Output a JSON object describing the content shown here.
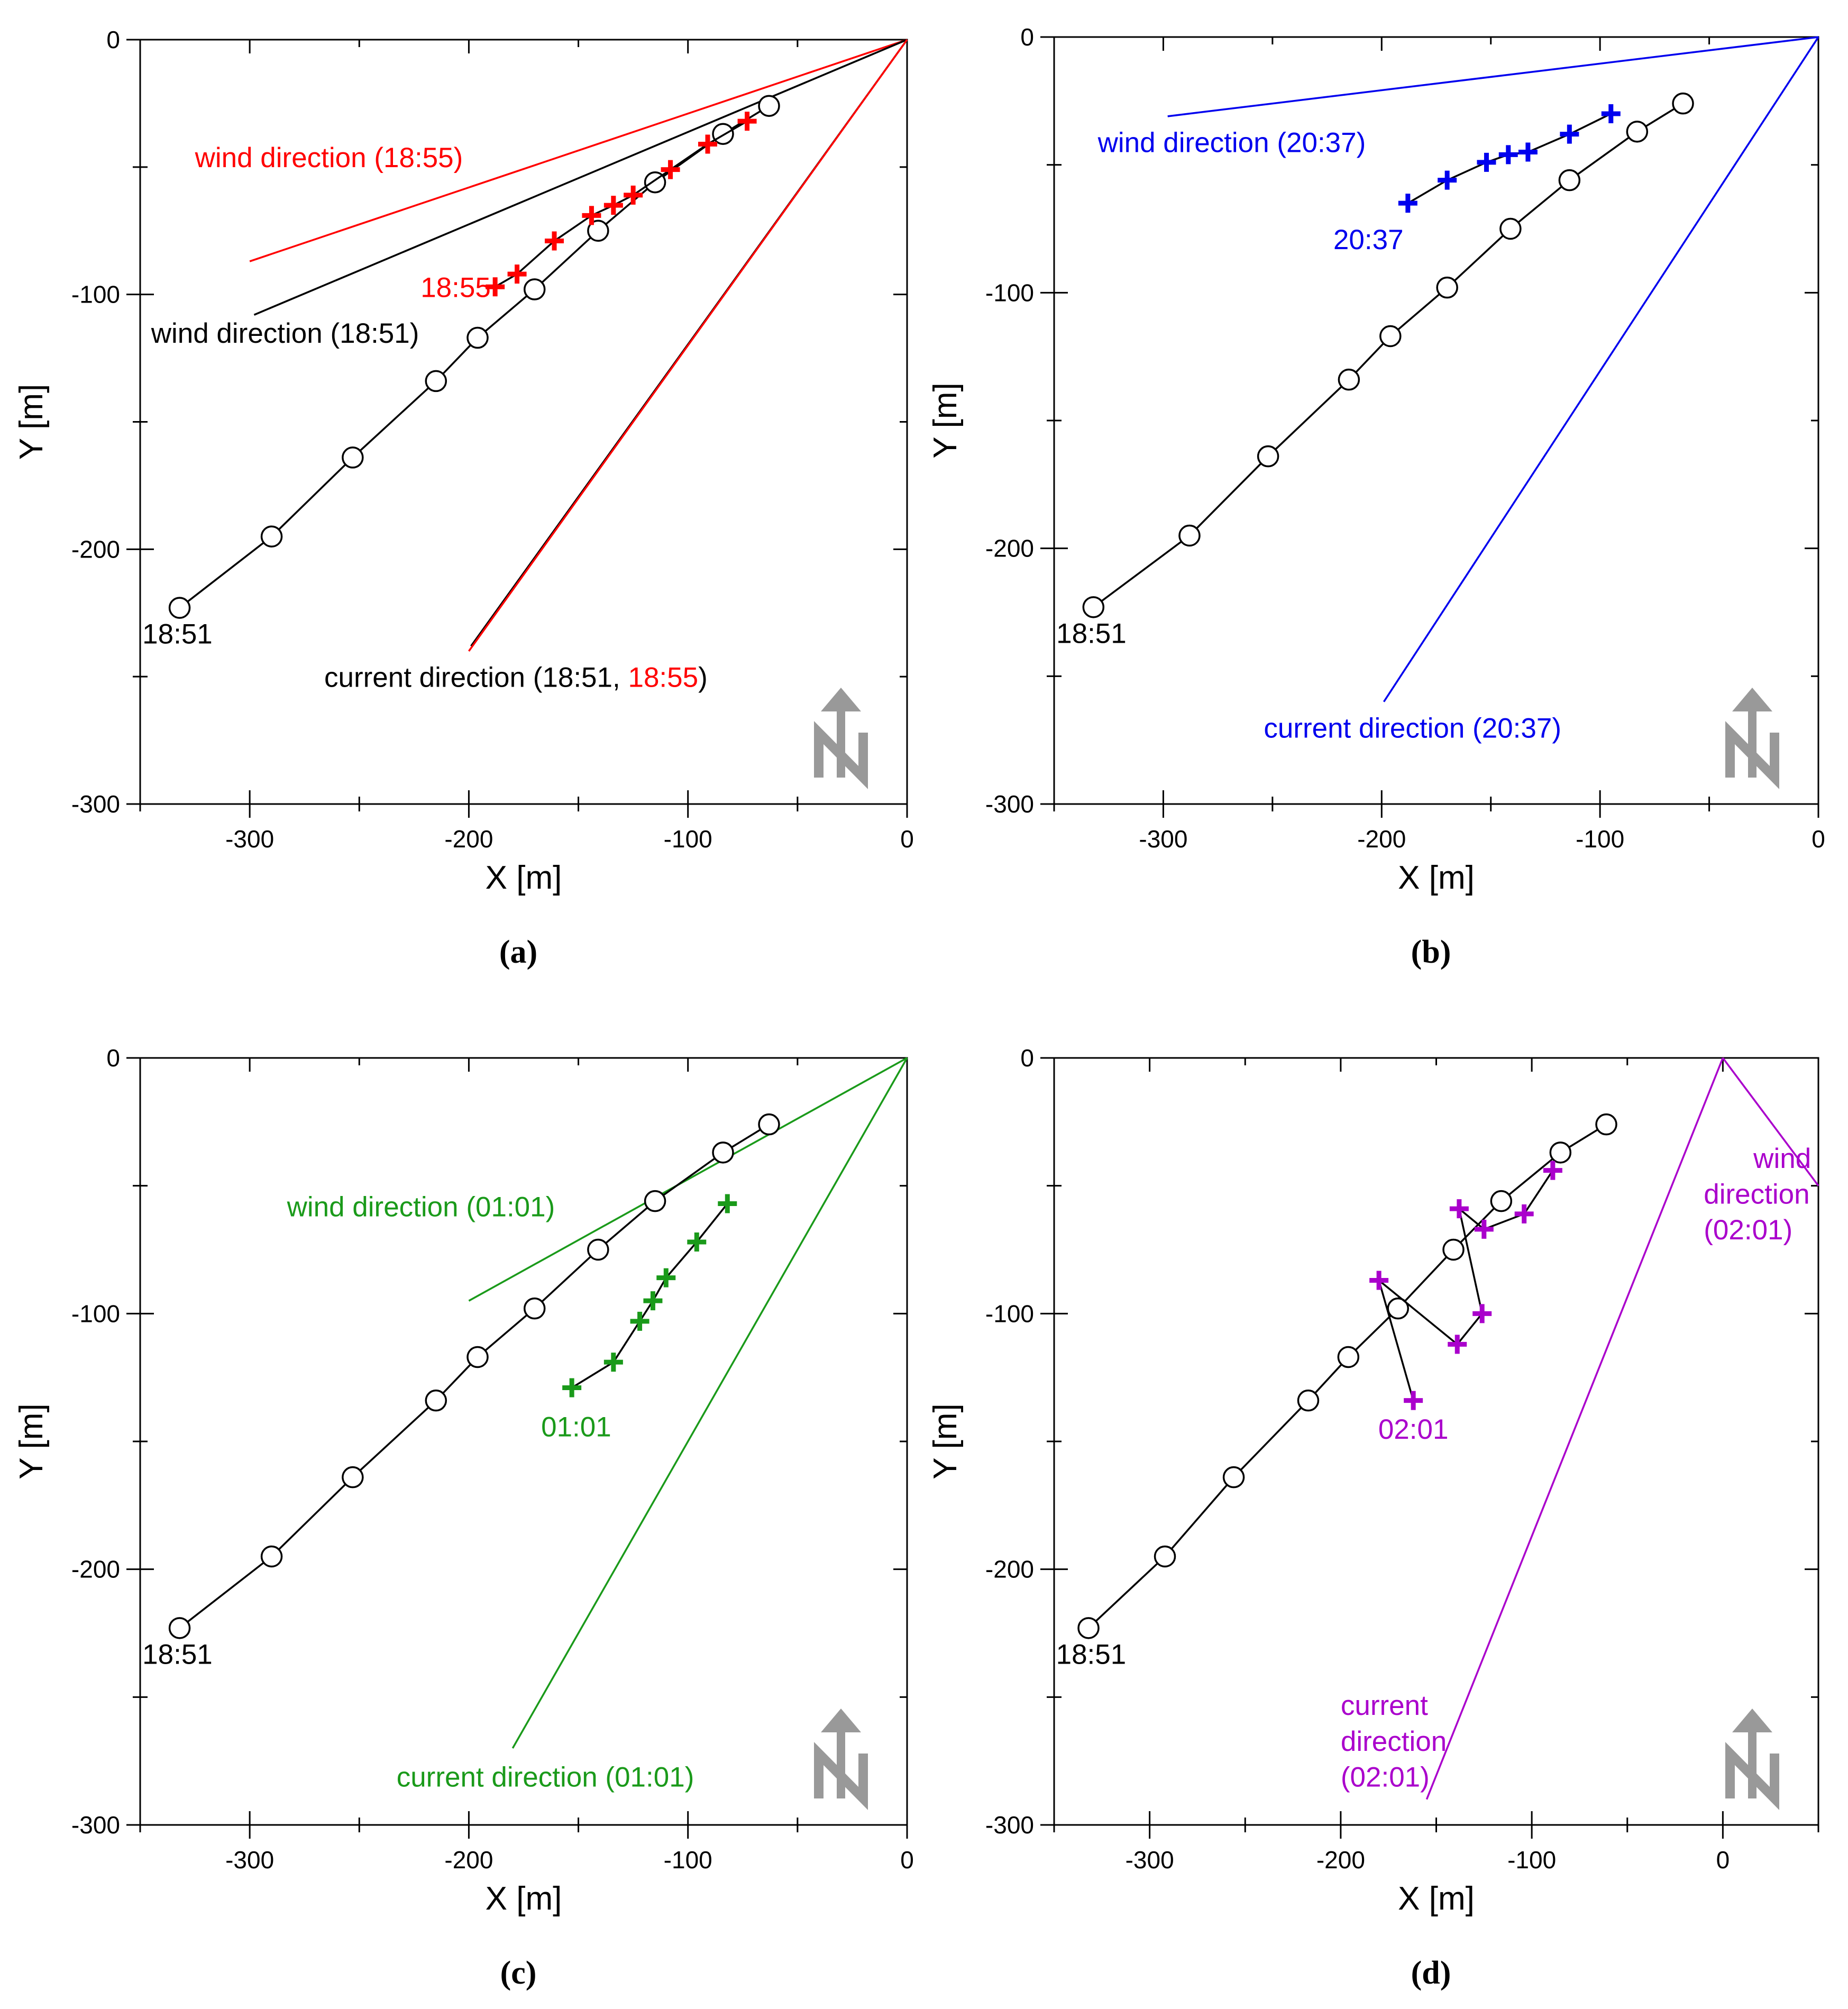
{
  "figure": {
    "north_arrow_label": "N",
    "north_arrow_color": "#999999"
  },
  "chart_data": [
    {
      "id": "a",
      "type": "scatter",
      "panel_label": "(a)",
      "xlabel": "X [m]",
      "ylabel": "Y [m]",
      "xlim": [
        -350,
        0
      ],
      "ylim": [
        -300,
        0
      ],
      "xticks": [
        -300,
        -200,
        -100,
        0
      ],
      "yticks": [
        0,
        -100,
        -200,
        -300
      ],
      "trajectory_color": "#000000",
      "trajectory": [
        [
          -332,
          -223
        ],
        [
          -290,
          -195
        ],
        [
          -253,
          -164
        ],
        [
          -215,
          -134
        ],
        [
          -196,
          -117
        ],
        [
          -170,
          -98
        ],
        [
          -141,
          -75
        ],
        [
          -115,
          -56
        ],
        [
          -84,
          -37
        ],
        [
          -63,
          -26
        ]
      ],
      "trajectory_label": "18:51",
      "measured_color": "#ff0000",
      "measured": [
        [
          -188,
          -97
        ],
        [
          -178,
          -92
        ],
        [
          -161,
          -79
        ],
        [
          -144,
          -69
        ],
        [
          -134,
          -65
        ],
        [
          -125,
          -61
        ],
        [
          -108,
          -51
        ],
        [
          -91,
          -41
        ],
        [
          -73,
          -32
        ]
      ],
      "measured_label": "18:55",
      "lines": [
        {
          "name": "wind 18:55",
          "color": "#ff0000",
          "from": [
            -300,
            -87
          ],
          "to": [
            0,
            0
          ]
        },
        {
          "name": "wind 18:51",
          "color": "#000000",
          "from": [
            -298,
            -108
          ],
          "to": [
            0,
            0
          ]
        },
        {
          "name": "current 18:51",
          "color": "#000000",
          "from": [
            -199,
            -238
          ],
          "to": [
            0,
            0
          ]
        },
        {
          "name": "current 18:55",
          "color": "#ff0000",
          "from": [
            -200,
            -240
          ],
          "to": [
            0,
            0
          ]
        }
      ],
      "annotations": [
        {
          "id": "wind-1855",
          "x": -325,
          "y": -50,
          "anchor": "start",
          "parts": [
            {
              "text": "wind direction (18:55)",
              "color": "#ff0000"
            }
          ]
        },
        {
          "id": "wind-1851",
          "x": -345,
          "y": -119,
          "anchor": "start",
          "parts": [
            {
              "text": "wind direction (18:51)",
              "color": "#000000"
            }
          ]
        },
        {
          "id": "measured-label",
          "x": -190,
          "y": -101,
          "anchor": "end",
          "parts": [
            {
              "text": "18:55",
              "color": "#ff0000"
            }
          ]
        },
        {
          "id": "trajectory-label",
          "x": -349,
          "y": -237,
          "anchor": "start",
          "parts": [
            {
              "text": "18:51",
              "color": "#000000"
            }
          ]
        },
        {
          "id": "current-label",
          "x": -266,
          "y": -254,
          "anchor": "start",
          "parts": [
            {
              "text": "current direction (18:51, ",
              "color": "#000000"
            },
            {
              "text": "18:55",
              "color": "#ff0000"
            },
            {
              "text": ")",
              "color": "#000000"
            }
          ]
        }
      ]
    },
    {
      "id": "b",
      "type": "scatter",
      "panel_label": "(b)",
      "xlabel": "X [m]",
      "ylabel": "Y [m]",
      "xlim": [
        -350,
        0
      ],
      "ylim": [
        -300,
        0
      ],
      "xticks": [
        -300,
        -200,
        -100,
        0
      ],
      "yticks": [
        0,
        -100,
        -200,
        -300
      ],
      "trajectory_color": "#000000",
      "trajectory": [
        [
          -332,
          -223
        ],
        [
          -288,
          -195
        ],
        [
          -252,
          -164
        ],
        [
          -215,
          -134
        ],
        [
          -196,
          -117
        ],
        [
          -170,
          -98
        ],
        [
          -141,
          -75
        ],
        [
          -114,
          -56
        ],
        [
          -83,
          -37
        ],
        [
          -62,
          -26
        ]
      ],
      "trajectory_label": "18:51",
      "measured_color": "#0000ee",
      "measured": [
        [
          -188,
          -65
        ],
        [
          -170,
          -56
        ],
        [
          -152,
          -49
        ],
        [
          -142,
          -46
        ],
        [
          -133,
          -45
        ],
        [
          -114,
          -38
        ],
        [
          -95,
          -30
        ]
      ],
      "measured_label": "20:37",
      "lines": [
        {
          "name": "wind 20:37",
          "color": "#0000ee",
          "from": [
            -298,
            -31
          ],
          "to": [
            0,
            0
          ]
        },
        {
          "name": "current 20:37",
          "color": "#0000ee",
          "from": [
            -199,
            -260
          ],
          "to": [
            0,
            0
          ]
        }
      ],
      "annotations": [
        {
          "id": "wind-2037",
          "x": -330,
          "y": -45,
          "anchor": "start",
          "parts": [
            {
              "text": "wind direction (20:37)",
              "color": "#0000ee"
            }
          ]
        },
        {
          "id": "measured-label",
          "x": -190,
          "y": -83,
          "anchor": "end",
          "parts": [
            {
              "text": "20:37",
              "color": "#0000ee"
            }
          ]
        },
        {
          "id": "trajectory-label",
          "x": -349,
          "y": -237,
          "anchor": "start",
          "parts": [
            {
              "text": "18:51",
              "color": "#000000"
            }
          ]
        },
        {
          "id": "current-label",
          "x": -254,
          "y": -274,
          "anchor": "start",
          "parts": [
            {
              "text": "current direction (20:37)",
              "color": "#0000ee"
            }
          ]
        }
      ]
    },
    {
      "id": "c",
      "type": "scatter",
      "panel_label": "(c)",
      "xlabel": "X [m]",
      "ylabel": "Y [m]",
      "xlim": [
        -350,
        0
      ],
      "ylim": [
        -300,
        0
      ],
      "xticks": [
        -300,
        -200,
        -100,
        0
      ],
      "yticks": [
        0,
        -100,
        -200,
        -300
      ],
      "trajectory_color": "#000000",
      "trajectory": [
        [
          -332,
          -223
        ],
        [
          -290,
          -195
        ],
        [
          -253,
          -164
        ],
        [
          -215,
          -134
        ],
        [
          -196,
          -117
        ],
        [
          -170,
          -98
        ],
        [
          -141,
          -75
        ],
        [
          -115,
          -56
        ],
        [
          -84,
          -37
        ],
        [
          -63,
          -26
        ]
      ],
      "trajectory_label": "18:51",
      "measured_color": "#1a9a1a",
      "measured": [
        [
          -153,
          -129
        ],
        [
          -134,
          -119
        ],
        [
          -122,
          -103
        ],
        [
          -116,
          -95
        ],
        [
          -110,
          -86
        ],
        [
          -96,
          -72
        ],
        [
          -82,
          -57
        ]
      ],
      "measured_label": "01:01",
      "lines": [
        {
          "name": "wind 01:01",
          "color": "#1a9a1a",
          "from": [
            -200,
            -95
          ],
          "to": [
            0,
            0
          ]
        },
        {
          "name": "current 01:01",
          "color": "#1a9a1a",
          "from": [
            -180,
            -270
          ],
          "to": [
            0,
            0
          ]
        }
      ],
      "annotations": [
        {
          "id": "wind-0101",
          "x": -283,
          "y": -62,
          "anchor": "start",
          "parts": [
            {
              "text": "wind direction (01:01)",
              "color": "#1a9a1a"
            }
          ]
        },
        {
          "id": "measured-label",
          "x": -151,
          "y": -148,
          "anchor": "middle",
          "parts": [
            {
              "text": "01:01",
              "color": "#1a9a1a"
            }
          ]
        },
        {
          "id": "trajectory-label",
          "x": -349,
          "y": -237,
          "anchor": "start",
          "parts": [
            {
              "text": "18:51",
              "color": "#000000"
            }
          ]
        },
        {
          "id": "current-label",
          "x": -233,
          "y": -285,
          "anchor": "start",
          "parts": [
            {
              "text": "current direction (01:01)",
              "color": "#1a9a1a"
            }
          ]
        }
      ]
    },
    {
      "id": "d",
      "type": "scatter",
      "panel_label": "(d)",
      "xlabel": "X [m]",
      "ylabel": "Y [m]",
      "xlim": [
        -350,
        50
      ],
      "ylim": [
        -300,
        0
      ],
      "xticks": [
        -300,
        -200,
        -100,
        0
      ],
      "yticks": [
        0,
        -100,
        -200,
        -300
      ],
      "trajectory_color": "#000000",
      "trajectory": [
        [
          -332,
          -223
        ],
        [
          -292,
          -195
        ],
        [
          -256,
          -164
        ],
        [
          -217,
          -134
        ],
        [
          -196,
          -117
        ],
        [
          -170,
          -98
        ],
        [
          -141,
          -75
        ],
        [
          -116,
          -56
        ],
        [
          -85,
          -37
        ],
        [
          -61,
          -26
        ]
      ],
      "trajectory_label": "18:51",
      "measured_color": "#aa00cc",
      "measured": [
        [
          -162,
          -134
        ],
        [
          -180,
          -87
        ],
        [
          -139,
          -112
        ],
        [
          -126,
          -100
        ],
        [
          -138,
          -59
        ],
        [
          -125,
          -67
        ],
        [
          -104,
          -61
        ],
        [
          -89,
          -44
        ]
      ],
      "measured_label": "02:01",
      "lines": [
        {
          "name": "wind 02:01",
          "color": "#aa00cc",
          "from": [
            50,
            -50
          ],
          "to": [
            0,
            0
          ]
        },
        {
          "name": "current 02:01",
          "color": "#aa00cc",
          "from": [
            -155,
            -290
          ],
          "to": [
            0,
            0
          ]
        }
      ],
      "annotations": [
        {
          "id": "wind-0201-line1",
          "x": 16,
          "y": -43,
          "anchor": "start",
          "parts": [
            {
              "text": "wind",
              "color": "#aa00cc"
            }
          ]
        },
        {
          "id": "wind-0201-line2",
          "x": -10,
          "y": -57,
          "anchor": "start",
          "parts": [
            {
              "text": "direction",
              "color": "#aa00cc"
            }
          ]
        },
        {
          "id": "wind-0201-line3",
          "x": -10,
          "y": -71,
          "anchor": "start",
          "parts": [
            {
              "text": "(02:01)",
              "color": "#aa00cc"
            }
          ]
        },
        {
          "id": "measured-label",
          "x": -162,
          "y": -149,
          "anchor": "middle",
          "parts": [
            {
              "text": "02:01",
              "color": "#aa00cc"
            }
          ]
        },
        {
          "id": "trajectory-label",
          "x": -349,
          "y": -237,
          "anchor": "start",
          "parts": [
            {
              "text": "18:51",
              "color": "#000000"
            }
          ]
        },
        {
          "id": "current-line1",
          "x": -200,
          "y": -257,
          "anchor": "start",
          "parts": [
            {
              "text": "current",
              "color": "#aa00cc"
            }
          ]
        },
        {
          "id": "current-line2",
          "x": -200,
          "y": -271,
          "anchor": "start",
          "parts": [
            {
              "text": "direction",
              "color": "#aa00cc"
            }
          ]
        },
        {
          "id": "current-line3",
          "x": -200,
          "y": -285,
          "anchor": "start",
          "parts": [
            {
              "text": "(02:01)",
              "color": "#aa00cc"
            }
          ]
        }
      ]
    }
  ]
}
